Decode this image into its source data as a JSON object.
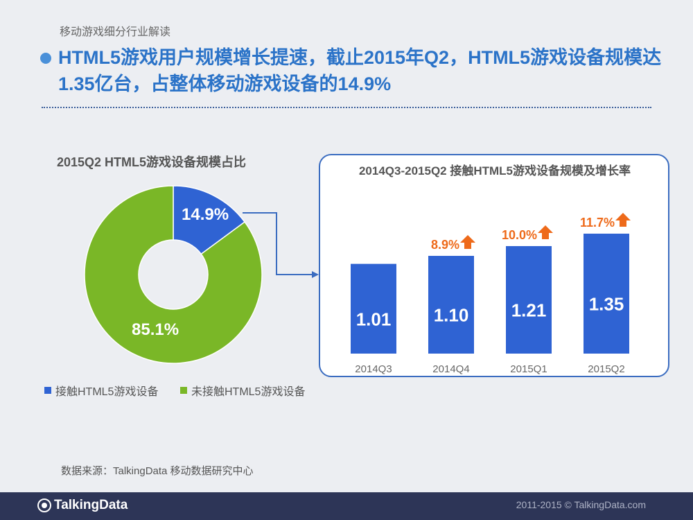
{
  "header": {
    "section": "移动游戏细分行业解读",
    "headline": "HTML5游戏用户规模增长提速，截止2015年Q2，HTML5游戏设备规模达1.35亿台，占整体移动游戏设备的14.9%"
  },
  "colors": {
    "blue": "#2f63d3",
    "green": "#7ab727",
    "orange": "#ee6a1a",
    "accent": "#2b73c8"
  },
  "chart_data": [
    {
      "type": "pie",
      "title": "2015Q2 HTML5游戏设备规模占比",
      "donut": true,
      "slices": [
        {
          "name": "接触HTML5游戏设备",
          "value": 14.9,
          "label": "14.9%",
          "color": "#2f63d3"
        },
        {
          "name": "未接触HTML5游戏设备",
          "value": 85.1,
          "label": "85.1%",
          "color": "#7ab727"
        }
      ],
      "legend": "bottom-left"
    },
    {
      "type": "bar",
      "title": "2014Q3-2015Q2 接触HTML5游戏设备规模及增长率",
      "categories": [
        "2014Q3",
        "2014Q4",
        "2015Q1",
        "2015Q2"
      ],
      "values": [
        1.01,
        1.1,
        1.21,
        1.35
      ],
      "value_labels": [
        "1.01",
        "1.10",
        "1.21",
        "1.35"
      ],
      "growth_labels": [
        "",
        "8.9%",
        "10.0%",
        "11.7%"
      ],
      "ylim": [
        0,
        1.4
      ]
    }
  ],
  "source": "数据来源：TalkingData 移动数据研究中心",
  "footer": {
    "brand": "TalkingData",
    "copyright": "2011-2015 © TalkingData.com"
  }
}
